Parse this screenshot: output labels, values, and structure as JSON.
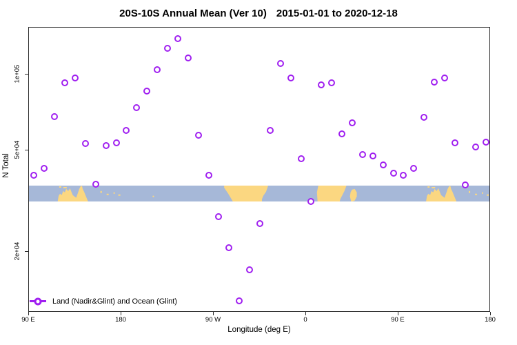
{
  "title": {
    "main": "20S-10S Annual Mean (Ver 10)",
    "dates": "2015-01-01 to 2020-12-18"
  },
  "axes": {
    "x": {
      "label": "Longitude (deg E)",
      "range_axis_deg": [
        90,
        540
      ],
      "ticks": [
        {
          "axis_deg": 90,
          "label": "90 E"
        },
        {
          "axis_deg": 180,
          "label": "180"
        },
        {
          "axis_deg": 270,
          "label": "90 W"
        },
        {
          "axis_deg": 360,
          "label": "0"
        },
        {
          "axis_deg": 450,
          "label": "90 E"
        },
        {
          "axis_deg": 540,
          "label": "180"
        }
      ]
    },
    "y": {
      "label": "N Total",
      "scale": "log10",
      "range": [
        11500,
        153000
      ],
      "ticks": [
        {
          "value": 100000,
          "label": "1e+05"
        },
        {
          "value": 50000,
          "label": "5e+04"
        },
        {
          "value": 20000,
          "label": "2e+04"
        }
      ]
    }
  },
  "legend": {
    "label": "Land (Nadir&Glint) and Ocean (Glint)",
    "marker": "open-circle-on-line",
    "position": "bottom-left-inside-plot"
  },
  "map_band": {
    "description": "20S-10S latitude world coastline strip drawn across the plot",
    "y_top_value": 36500,
    "y_bottom_value": 31500
  },
  "colors": {
    "marker": "#a020f0",
    "ocean": "#a6b8d8",
    "land": "#fbd781",
    "axis": "#2b2b2b",
    "background": "#ffffff"
  },
  "chart_data": {
    "type": "scatter",
    "title": "20S-10S Annual Mean (Ver 10)   2015-01-01 to 2020-12-18",
    "xlabel": "Longitude (deg E)",
    "ylabel": "N Total",
    "x_axis_note": "x axis spans 450 deg of longitude: 90E east through 180, 90W, 0, 90E to 180 (90E-180 segment repeats)",
    "grid": false,
    "legend_position": "bottom-left",
    "series": [
      {
        "name": "Land (Nadir&Glint) and Ocean (Glint)",
        "points_axisdeg_ntotal": [
          [
            95,
            40000
          ],
          [
            105,
            42600
          ],
          [
            115,
            68100
          ],
          [
            125,
            92600
          ],
          [
            135,
            96700
          ],
          [
            145,
            53400
          ],
          [
            155,
            36900
          ],
          [
            165,
            52400
          ],
          [
            175,
            53700
          ],
          [
            185,
            60100
          ],
          [
            195,
            73900
          ],
          [
            205,
            85900
          ],
          [
            215,
            104000
          ],
          [
            225,
            127000
          ],
          [
            235,
            138000
          ],
          [
            245,
            116000
          ],
          [
            255,
            57600
          ],
          [
            265,
            40000
          ],
          [
            275,
            27500
          ],
          [
            285,
            20800
          ],
          [
            295,
            12800
          ],
          [
            305,
            17000
          ],
          [
            315,
            25800
          ],
          [
            325,
            60100
          ],
          [
            335,
            110000
          ],
          [
            345,
            96700
          ],
          [
            355,
            46500
          ],
          [
            365,
            31600
          ],
          [
            375,
            90900
          ],
          [
            385,
            92600
          ],
          [
            395,
            58300
          ],
          [
            405,
            64400
          ],
          [
            415,
            48300
          ],
          [
            425,
            47700
          ],
          [
            435,
            44000
          ],
          [
            445,
            40800
          ],
          [
            455,
            40000
          ],
          [
            465,
            42600
          ],
          [
            475,
            67700
          ],
          [
            485,
            93200
          ],
          [
            495,
            96700
          ],
          [
            505,
            53700
          ],
          [
            515,
            36700
          ],
          [
            525,
            51700
          ],
          [
            535,
            54100
          ]
        ]
      }
    ]
  }
}
